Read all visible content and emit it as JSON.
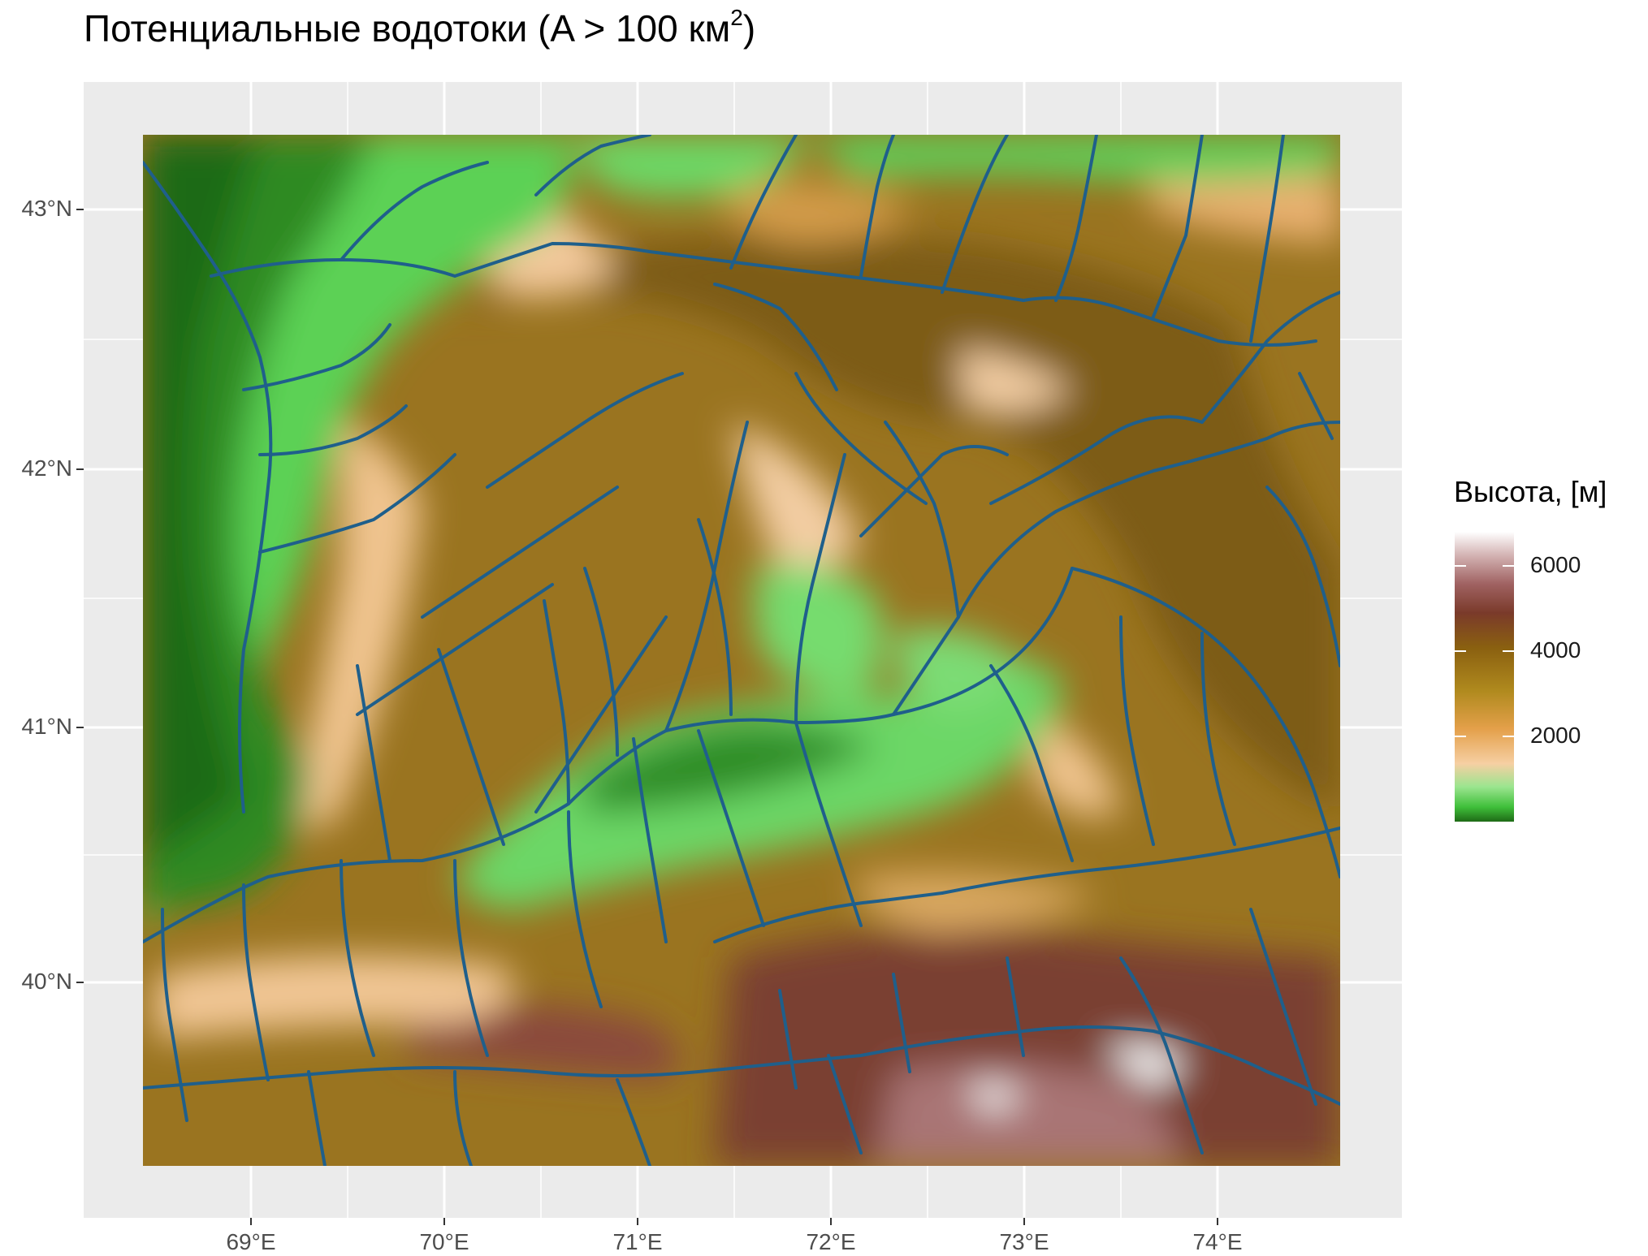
{
  "map": {
    "title_main": "Потенциальные водотоки (A > 100 км",
    "title_sup": "2",
    "title_end": ")",
    "lon_ticks": [
      "69°E",
      "70°E",
      "71°E",
      "72°E",
      "73°E",
      "74°E"
    ],
    "lat_ticks": [
      "43°N",
      "42°N",
      "41°N",
      "40°N"
    ],
    "legend": {
      "title": "Высота, [м]",
      "breaks": [
        "6000",
        "4000",
        "2000"
      ],
      "break_values": [
        6000,
        4000,
        2000
      ],
      "min_value": 0,
      "max_value": 6800,
      "colors": [
        "#1e6b16",
        "#3fbf3a",
        "#7fe07a",
        "#f6cfa3",
        "#e7a24e",
        "#b38a1e",
        "#8a6010",
        "#7a3f2a",
        "#9a5a5a",
        "#c9a3a3",
        "#ffffff"
      ]
    },
    "layers": {
      "background": "#ebebeb",
      "gridline": "#ffffff",
      "stream_color": "#1f5f8b"
    }
  }
}
